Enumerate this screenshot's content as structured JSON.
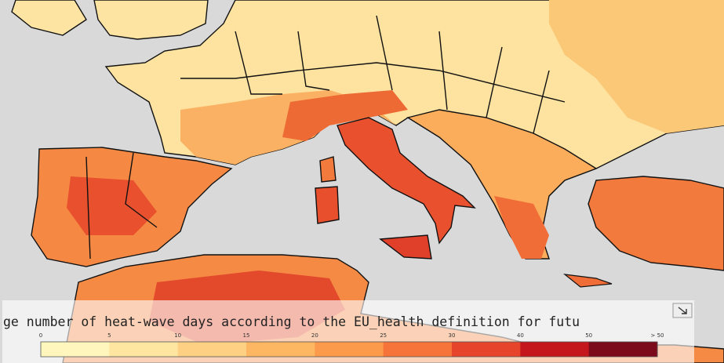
{
  "legend": {
    "title": "ge number of heat-wave days according to the EU_health definition for futu",
    "labels": [
      "0",
      "5",
      "10",
      "15",
      "20",
      "25",
      "30",
      "40",
      "50",
      "> 50"
    ],
    "colors": [
      "#fff6bd",
      "#fee5a0",
      "#fdd083",
      "#fdb662",
      "#fb9a4b",
      "#f6733a",
      "#e6452b",
      "#c3161d",
      "#7b0b1b"
    ]
  }
}
